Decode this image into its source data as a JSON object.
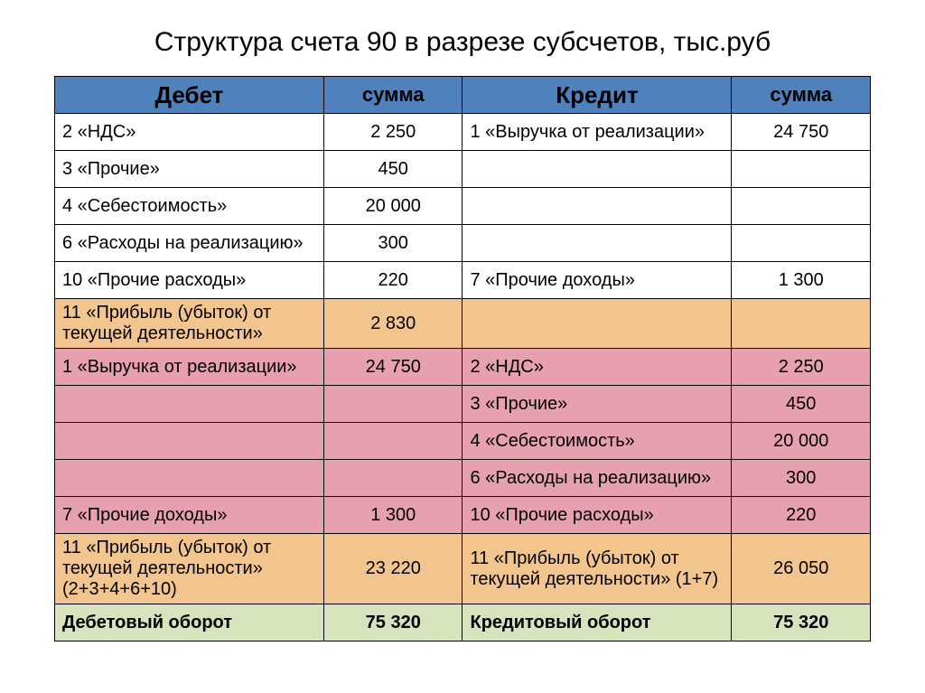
{
  "title": "Структура счета 90 в разрезе субсчетов, тыс.руб",
  "headers": {
    "debit": "Дебет",
    "debit_sum": "сумма",
    "credit": "Кредит",
    "credit_sum": "сумма"
  },
  "rows": [
    {
      "style": "white",
      "dl": "2 «НДС»",
      "da": "2 250",
      "cl": "1 «Выручка от реализации»",
      "ca": "24 750"
    },
    {
      "style": "white",
      "dl": "3 «Прочие»",
      "da": "450",
      "cl": "",
      "ca": ""
    },
    {
      "style": "white",
      "dl": "4 «Себестоимость»",
      "da": "20 000",
      "cl": "",
      "ca": ""
    },
    {
      "style": "white",
      "dl": "6 «Расходы на реализацию»",
      "da": "300",
      "cl": "",
      "ca": ""
    },
    {
      "style": "white",
      "dl": "10 «Прочие расходы»",
      "da": "220",
      "cl": "7 «Прочие доходы»",
      "ca": "1 300"
    },
    {
      "style": "orange",
      "dl": "11 «Прибыль (убыток) от текущей деятельности»",
      "da": "2 830",
      "cl": "",
      "ca": ""
    },
    {
      "style": "pink",
      "dl": "1 «Выручка от реализации»",
      "da": "24 750",
      "cl": "2 «НДС»",
      "ca": "2 250"
    },
    {
      "style": "pink",
      "dl": "",
      "da": "",
      "cl": "3 «Прочие»",
      "ca": "450"
    },
    {
      "style": "pink",
      "dl": "",
      "da": "",
      "cl": "4 «Себестоимость»",
      "ca": "20 000"
    },
    {
      "style": "pink",
      "dl": "",
      "da": "",
      "cl": "6 «Расходы на реализацию»",
      "ca": "300"
    },
    {
      "style": "pink",
      "dl": "7 «Прочие доходы»",
      "da": "1 300",
      "cl": "10 «Прочие расходы»",
      "ca": "220"
    },
    {
      "style": "orange",
      "dl": "11 «Прибыль (убыток) от текущей деятельности» (2+3+4+6+10)",
      "da": "23 220",
      "cl": "11 «Прибыль (убыток) от текущей деятельности» (1+7)",
      "ca": "26 050"
    },
    {
      "style": "green",
      "dl": "Дебетовый оборот",
      "da": "75 320",
      "cl": "Кредитовый оборот",
      "ca": "75 320"
    }
  ],
  "colors": {
    "header_bg": "#4f81bd",
    "white_bg": "#ffffff",
    "orange_bg": "#f2c48e",
    "pink_bg": "#e6a0b0",
    "green_bg": "#d6e3bc",
    "border": "#000000"
  }
}
